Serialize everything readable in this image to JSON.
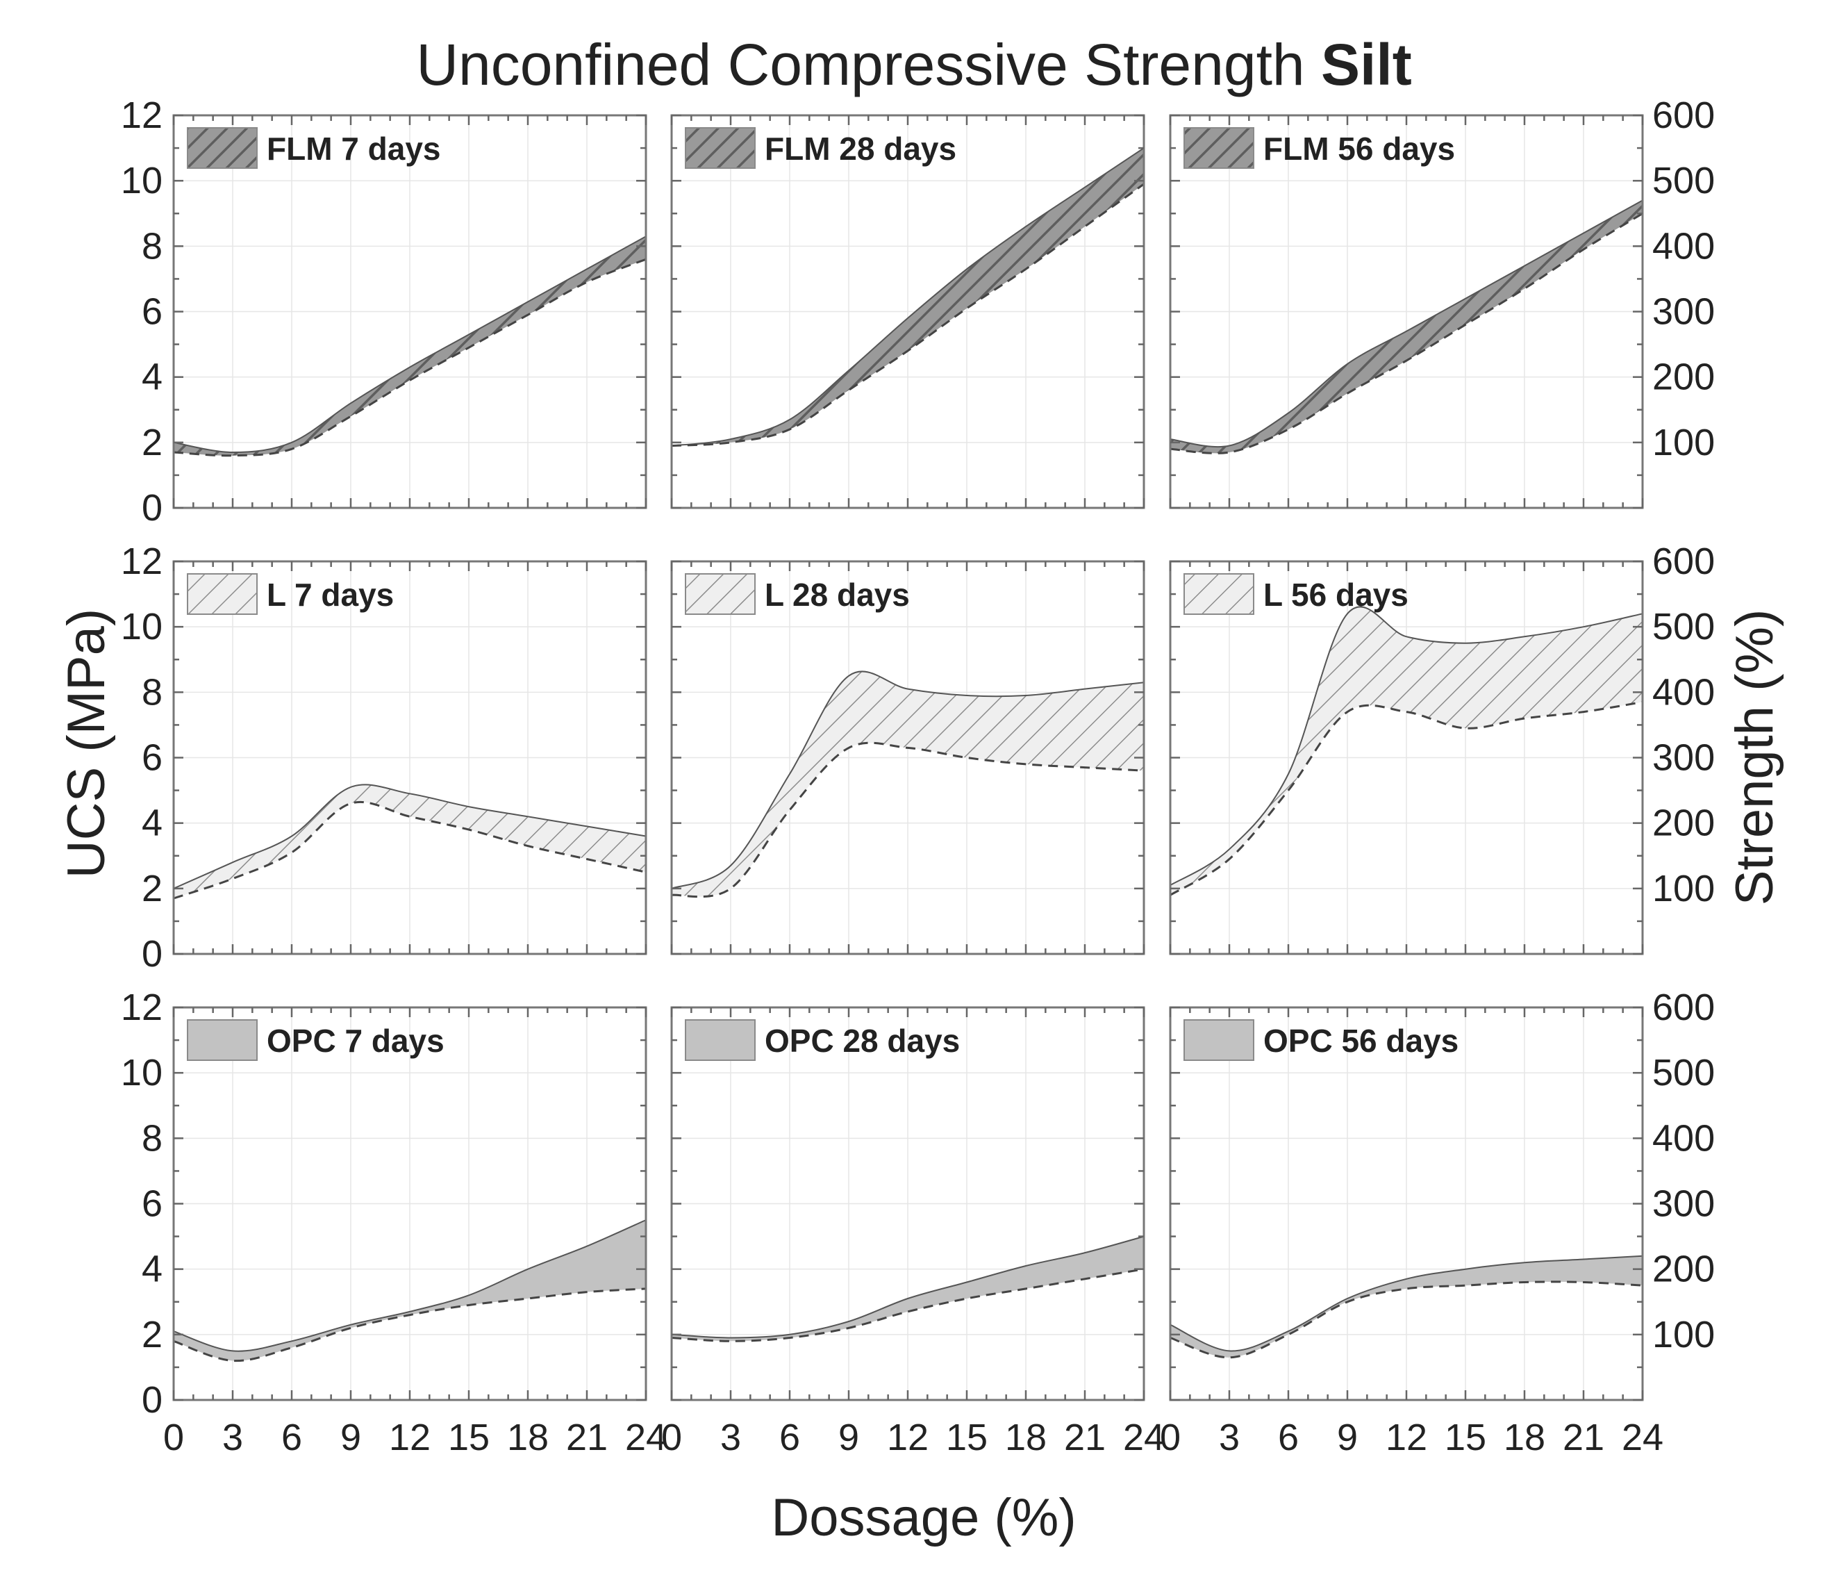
{
  "title": {
    "prefix": "Unconfined Compressive Strength",
    "emphasis": "Silt"
  },
  "axes": {
    "xlabel": "Dossage (%)",
    "ylabel_left": "UCS (MPa)",
    "ylabel_right": "Strength (%)"
  },
  "colors": {
    "flm": "#8a8a8a",
    "lime": "#e9e9e9",
    "opc": "#c2c2c2",
    "frame": "#777777",
    "grid": "#e6e6e6",
    "text": "#222222"
  },
  "chart_data": {
    "type": "area",
    "layout": "3x3 small multiples",
    "title": "Unconfined Compressive Strength Silt",
    "xlabel": "Dossage (%)",
    "ylabel": "UCS (MPa)",
    "ylabel_right": "Strength (%)",
    "xlim": [
      0,
      24
    ],
    "ylim": [
      0,
      12
    ],
    "ylim_right": [
      0,
      600
    ],
    "xticks": [
      0,
      3,
      6,
      9,
      12,
      15,
      18,
      21,
      24
    ],
    "yticks": [
      0,
      2,
      4,
      6,
      8,
      10,
      12
    ],
    "yticks_right": [
      100,
      200,
      300,
      400,
      500,
      600
    ],
    "x": [
      0,
      3,
      6,
      9,
      12,
      15,
      18,
      21,
      24
    ],
    "panels": [
      {
        "label": "FLM 7 days",
        "binder": "FLM",
        "fill": "flm",
        "hatch": "dense",
        "upper": [
          2.0,
          1.7,
          2.0,
          3.2,
          4.3,
          5.3,
          6.3,
          7.3,
          8.3
        ],
        "lower": [
          1.7,
          1.6,
          1.8,
          2.8,
          3.9,
          4.9,
          5.9,
          6.9,
          7.6
        ]
      },
      {
        "label": "FLM 28 days",
        "binder": "FLM",
        "fill": "flm",
        "hatch": "dense",
        "upper": [
          1.9,
          2.1,
          2.7,
          4.2,
          5.8,
          7.3,
          8.6,
          9.8,
          11.0
        ],
        "lower": [
          1.9,
          2.0,
          2.4,
          3.6,
          4.8,
          6.1,
          7.3,
          8.6,
          9.9
        ]
      },
      {
        "label": "FLM 56 days",
        "binder": "FLM",
        "fill": "flm",
        "hatch": "dense",
        "upper": [
          2.1,
          1.9,
          2.9,
          4.4,
          5.4,
          6.4,
          7.4,
          8.4,
          9.4
        ],
        "lower": [
          1.8,
          1.7,
          2.4,
          3.5,
          4.5,
          5.6,
          6.7,
          7.9,
          9.0
        ]
      },
      {
        "label": "L 7 days",
        "binder": "L",
        "fill": "lime",
        "hatch": "sparse",
        "upper": [
          2.0,
          2.8,
          3.6,
          5.1,
          4.9,
          4.5,
          4.2,
          3.9,
          3.6
        ],
        "lower": [
          1.7,
          2.3,
          3.1,
          4.6,
          4.2,
          3.8,
          3.3,
          2.9,
          2.5
        ]
      },
      {
        "label": "L 28 days",
        "binder": "L",
        "fill": "lime",
        "hatch": "sparse",
        "upper": [
          2.0,
          2.7,
          5.5,
          8.5,
          8.1,
          7.9,
          7.9,
          8.1,
          8.3
        ],
        "lower": [
          1.8,
          2.0,
          4.4,
          6.3,
          6.3,
          6.0,
          5.8,
          5.7,
          5.6
        ]
      },
      {
        "label": "L 56 days",
        "binder": "L",
        "fill": "lime",
        "hatch": "sparse",
        "upper": [
          2.1,
          3.2,
          5.5,
          10.4,
          9.7,
          9.5,
          9.7,
          10.0,
          10.4
        ],
        "lower": [
          1.8,
          2.9,
          5.0,
          7.4,
          7.4,
          6.9,
          7.2,
          7.4,
          7.7
        ]
      },
      {
        "label": "OPC 7 days",
        "binder": "OPC",
        "fill": "opc",
        "hatch": "none",
        "upper": [
          2.1,
          1.5,
          1.8,
          2.3,
          2.7,
          3.2,
          4.0,
          4.7,
          5.5
        ],
        "lower": [
          1.8,
          1.2,
          1.6,
          2.2,
          2.6,
          2.9,
          3.1,
          3.3,
          3.4
        ]
      },
      {
        "label": "OPC 28 days",
        "binder": "OPC",
        "fill": "opc",
        "hatch": "none",
        "upper": [
          2.0,
          1.9,
          2.0,
          2.4,
          3.1,
          3.6,
          4.1,
          4.5,
          5.0
        ],
        "lower": [
          1.9,
          1.8,
          1.9,
          2.2,
          2.7,
          3.1,
          3.4,
          3.7,
          4.0
        ]
      },
      {
        "label": "OPC 56 days",
        "binder": "OPC",
        "fill": "opc",
        "hatch": "none",
        "upper": [
          2.3,
          1.5,
          2.1,
          3.1,
          3.7,
          4.0,
          4.2,
          4.3,
          4.4
        ],
        "lower": [
          1.9,
          1.3,
          2.0,
          3.0,
          3.4,
          3.5,
          3.6,
          3.6,
          3.5
        ]
      }
    ]
  }
}
